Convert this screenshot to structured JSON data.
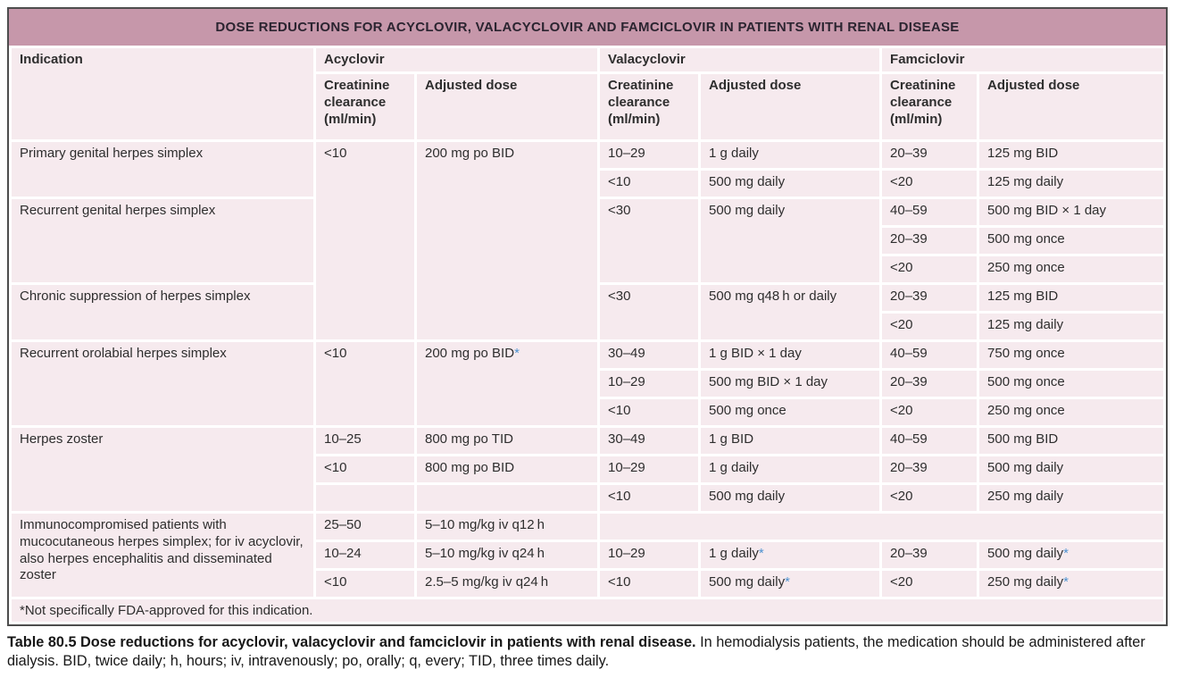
{
  "title": "DOSE REDUCTIONS FOR ACYCLOVIR, VALACYCLOVIR AND FAMCICLOVIR IN PATIENTS WITH RENAL DISEASE",
  "colors": {
    "title_bg": "#c697aa",
    "header_bg": "#d9bec9",
    "row_bg": "#f6eaee",
    "border": "#4d4d4d",
    "star_blue": "#4f93d0",
    "text": "#2e2e2e"
  },
  "header": {
    "indication_label": "Indication",
    "drug_groups": [
      "Acyclovir",
      "Valacyclovir",
      "Famciclovir"
    ],
    "crcl_label": "Creatinine clearance (ml/min)",
    "dose_label": "Adjusted dose"
  },
  "table": {
    "rows": [
      [
        {
          "t": "Primary genital herpes simplex",
          "rs": 2,
          "kind": "ind"
        },
        {
          "t": "<10",
          "rs": 7,
          "kind": "crcl"
        },
        {
          "t": "200 mg po BID",
          "rs": 7,
          "kind": "dose"
        },
        {
          "t": "10–29",
          "kind": "crcl"
        },
        {
          "t": "1 g daily",
          "kind": "dose"
        },
        {
          "t": "20–39",
          "kind": "crcl"
        },
        {
          "t": "125 mg BID",
          "kind": "dose"
        }
      ],
      [
        {
          "t": "<10",
          "kind": "crcl"
        },
        {
          "t": "500 mg daily",
          "kind": "dose"
        },
        {
          "t": "<20",
          "kind": "crcl"
        },
        {
          "t": "125 mg daily",
          "kind": "dose"
        }
      ],
      [
        {
          "t": "Recurrent genital herpes simplex",
          "rs": 3,
          "kind": "ind"
        },
        {
          "t": "<30",
          "rs": 3,
          "kind": "crcl"
        },
        {
          "t": "500 mg daily",
          "rs": 3,
          "kind": "dose"
        },
        {
          "t": "40–59",
          "kind": "crcl"
        },
        {
          "t": "500 mg BID × 1 day",
          "kind": "dose"
        }
      ],
      [
        {
          "t": "20–39",
          "kind": "crcl"
        },
        {
          "t": "500 mg once",
          "kind": "dose"
        }
      ],
      [
        {
          "t": "<20",
          "kind": "crcl"
        },
        {
          "t": "250 mg once",
          "kind": "dose"
        }
      ],
      [
        {
          "t": "Chronic suppression of herpes simplex",
          "rs": 2,
          "kind": "ind"
        },
        {
          "t": "<30",
          "rs": 2,
          "kind": "crcl"
        },
        {
          "t": "500 mg q48 h or daily",
          "rs": 2,
          "kind": "dose"
        },
        {
          "t": "20–39",
          "kind": "crcl"
        },
        {
          "t": "125 mg BID",
          "kind": "dose"
        }
      ],
      [
        {
          "t": "<20",
          "kind": "crcl"
        },
        {
          "t": "125 mg daily",
          "kind": "dose"
        }
      ],
      [
        {
          "t": "Recurrent orolabial herpes simplex",
          "rs": 3,
          "kind": "ind"
        },
        {
          "t": "<10",
          "rs": 3,
          "kind": "crcl"
        },
        {
          "t": "200 mg po BID*",
          "rs": 3,
          "kind": "dose"
        },
        {
          "t": "30–49",
          "kind": "crcl"
        },
        {
          "t": "1 g BID × 1 day",
          "kind": "dose"
        },
        {
          "t": "40–59",
          "kind": "crcl"
        },
        {
          "t": "750 mg once",
          "kind": "dose"
        }
      ],
      [
        {
          "t": "10–29",
          "kind": "crcl"
        },
        {
          "t": "500 mg BID × 1 day",
          "kind": "dose"
        },
        {
          "t": "20–39",
          "kind": "crcl"
        },
        {
          "t": "500 mg once",
          "kind": "dose"
        }
      ],
      [
        {
          "t": "<10",
          "kind": "crcl"
        },
        {
          "t": "500 mg once",
          "kind": "dose"
        },
        {
          "t": "<20",
          "kind": "crcl"
        },
        {
          "t": "250 mg once",
          "kind": "dose"
        }
      ],
      [
        {
          "t": "Herpes zoster",
          "rs": 3,
          "kind": "ind"
        },
        {
          "t": "10–25",
          "kind": "crcl"
        },
        {
          "t": "800 mg po TID",
          "kind": "dose"
        },
        {
          "t": "30–49",
          "kind": "crcl"
        },
        {
          "t": "1 g BID",
          "kind": "dose"
        },
        {
          "t": "40–59",
          "kind": "crcl"
        },
        {
          "t": "500 mg BID",
          "kind": "dose"
        }
      ],
      [
        {
          "t": "<10",
          "kind": "crcl"
        },
        {
          "t": "800 mg po BID",
          "kind": "dose"
        },
        {
          "t": "10–29",
          "kind": "crcl"
        },
        {
          "t": "1 g daily",
          "kind": "dose"
        },
        {
          "t": "20–39",
          "kind": "crcl"
        },
        {
          "t": "500 mg daily",
          "kind": "dose"
        }
      ],
      [
        {
          "t": "",
          "kind": "crcl"
        },
        {
          "t": "",
          "kind": "dose"
        },
        {
          "t": "<10",
          "kind": "crcl"
        },
        {
          "t": "500 mg daily",
          "kind": "dose"
        },
        {
          "t": "<20",
          "kind": "crcl"
        },
        {
          "t": "250 mg daily",
          "kind": "dose"
        }
      ],
      [
        {
          "t": "Immunocompromised patients with mucocutaneous herpes simplex; for iv acyclovir, also herpes encephalitis and disseminated zoster",
          "rs": 3,
          "kind": "ind"
        },
        {
          "t": "25–50",
          "kind": "crcl"
        },
        {
          "t": "5–10 mg/kg iv q12 h",
          "kind": "dose"
        },
        {
          "t": "",
          "cs": 4,
          "kind": "empty"
        }
      ],
      [
        {
          "t": "10–24",
          "kind": "crcl"
        },
        {
          "t": "5–10 mg/kg iv q24 h",
          "kind": "dose"
        },
        {
          "t": "10–29",
          "kind": "crcl"
        },
        {
          "t": "1 g daily*",
          "kind": "dose"
        },
        {
          "t": "20–39",
          "kind": "crcl"
        },
        {
          "t": "500 mg daily*",
          "kind": "dose"
        }
      ],
      [
        {
          "t": "<10",
          "kind": "crcl"
        },
        {
          "t": "2.5–5 mg/kg iv q24 h",
          "kind": "dose"
        },
        {
          "t": "<10",
          "kind": "crcl"
        },
        {
          "t": "500 mg daily*",
          "kind": "dose"
        },
        {
          "t": "<20",
          "kind": "crcl"
        },
        {
          "t": "250 mg daily*",
          "kind": "dose"
        }
      ],
      [
        {
          "t": "*Not specifically FDA-approved for this indication.",
          "cs": 7,
          "kind": "footnote"
        }
      ]
    ]
  },
  "caption": {
    "bold": "Table 80.5 Dose reductions for acyclovir, valacyclovir and famciclovir in patients with renal disease.",
    "regular": "In hemodialysis patients, the medication should be administered after dialysis. BID, twice daily; h, hours; iv, intravenously; po, orally; q, every; TID, three times daily."
  }
}
